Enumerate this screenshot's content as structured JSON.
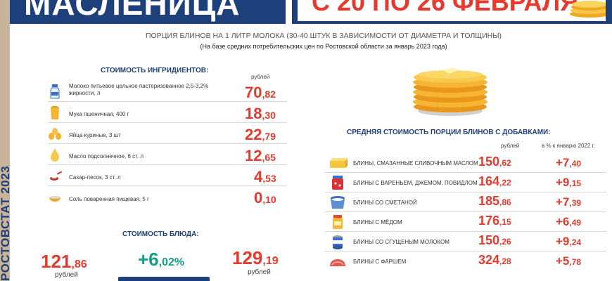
{
  "banner": {
    "title": "МАСЛЕНИЦА",
    "dates": "С 20 ПО 26 ФЕВРАЛЯ"
  },
  "side_label": "РОСТОВСТАТ 2023",
  "header": {
    "caption": "ПОРЦИЯ БЛИНОВ НА 1 ЛИТР МОЛОКА (30-40 ШТУК  В ЗАВИСИМОСТИ ОТ ДИАМЕТРА И ТОЛЩИНЫ)",
    "subcaption": "(На базе средних потребительских цен по Ростовской области за январь 2023 года)"
  },
  "ingredients": {
    "title": "СТОИМОСТЬ ИНГРИДИЕНТОВ:",
    "unit": "рублей",
    "items": [
      {
        "name": "Молоко питьевое  цельное  пастеризованное 2,5-3,2% жирности, л",
        "int": "70",
        "dec": ",82",
        "icon": "milk-bottle-icon"
      },
      {
        "name": "Мука пшеничная, 400 г",
        "int": "18",
        "dec": ",30",
        "icon": "flour-bag-icon"
      },
      {
        "name": "Яйца куриные, 3 шт",
        "int": "22",
        "dec": ",79",
        "icon": "eggs-icon"
      },
      {
        "name": "Масло подсолнечное,  6 ст. л",
        "int": "12",
        "dec": ",65",
        "icon": "oil-drop-icon"
      },
      {
        "name": "Сахар-песок, 3 ст. л",
        "int": "4",
        "dec": ",53",
        "icon": "sugar-spoon-icon"
      },
      {
        "name": "Соль поваренная пищевая, 5 г",
        "int": "0",
        "dec": ",10",
        "icon": "salt-bowl-icon"
      }
    ]
  },
  "dish": {
    "title": "СТОИМОСТЬ БЛЮДА:",
    "left_int": "121",
    "left_dec": ",86",
    "left_unit": "рублей",
    "change_int": "+6",
    "change_dec": ",02%",
    "right_int": "129",
    "right_dec": ",19",
    "right_unit": "рублей"
  },
  "pancakes": {
    "title": "СРЕДНЯЯ СТОИМОСТЬ ПОРЦИИ БЛИНОВ С ДОБАВКАМИ:",
    "unit": "рублей",
    "change_header": "в % к январю 2022 г.",
    "items": [
      {
        "name": "БЛИНЫ,  СМАЗАННЫЕ  СЛИВОЧНЫМ  МАСЛОМ",
        "int": "150",
        "dec": ",62",
        "chg_int": "+7",
        "chg_dec": ",40",
        "icon": "butter-icon"
      },
      {
        "name": "БЛИНЫ С ВАРЕНЬЕМ,  ДЖЕМОМ, ПОВИДЛОМ",
        "int": "164",
        "dec": ",22",
        "chg_int": "+9",
        "chg_dec": ",15",
        "icon": "jam-jar-icon"
      },
      {
        "name": "БЛИНЫ СО СМЕТАНОЙ",
        "int": "185",
        "dec": ",86",
        "chg_int": "+7",
        "chg_dec": ",39",
        "icon": "sour-cream-icon"
      },
      {
        "name": "БЛИНЫ С МЁДОМ",
        "int": "176",
        "dec": ",15",
        "chg_int": "+6",
        "chg_dec": ",49",
        "icon": "honey-jar-icon"
      },
      {
        "name": "БЛИНЫ СО СГУЩЕНЫМ МОЛОКОМ",
        "int": "150",
        "dec": ",26",
        "chg_int": "+9",
        "chg_dec": ",24",
        "icon": "condensed-milk-icon"
      },
      {
        "name": "БЛИНЫ С ФАРШЕМ",
        "int": "324",
        "dec": ",28",
        "chg_int": "+5",
        "chg_dec": ",78",
        "icon": "minced-meat-icon"
      }
    ]
  },
  "colors": {
    "accent": "#e63a2e",
    "brand": "#1d3f7a",
    "strip": "#c9b49a"
  }
}
